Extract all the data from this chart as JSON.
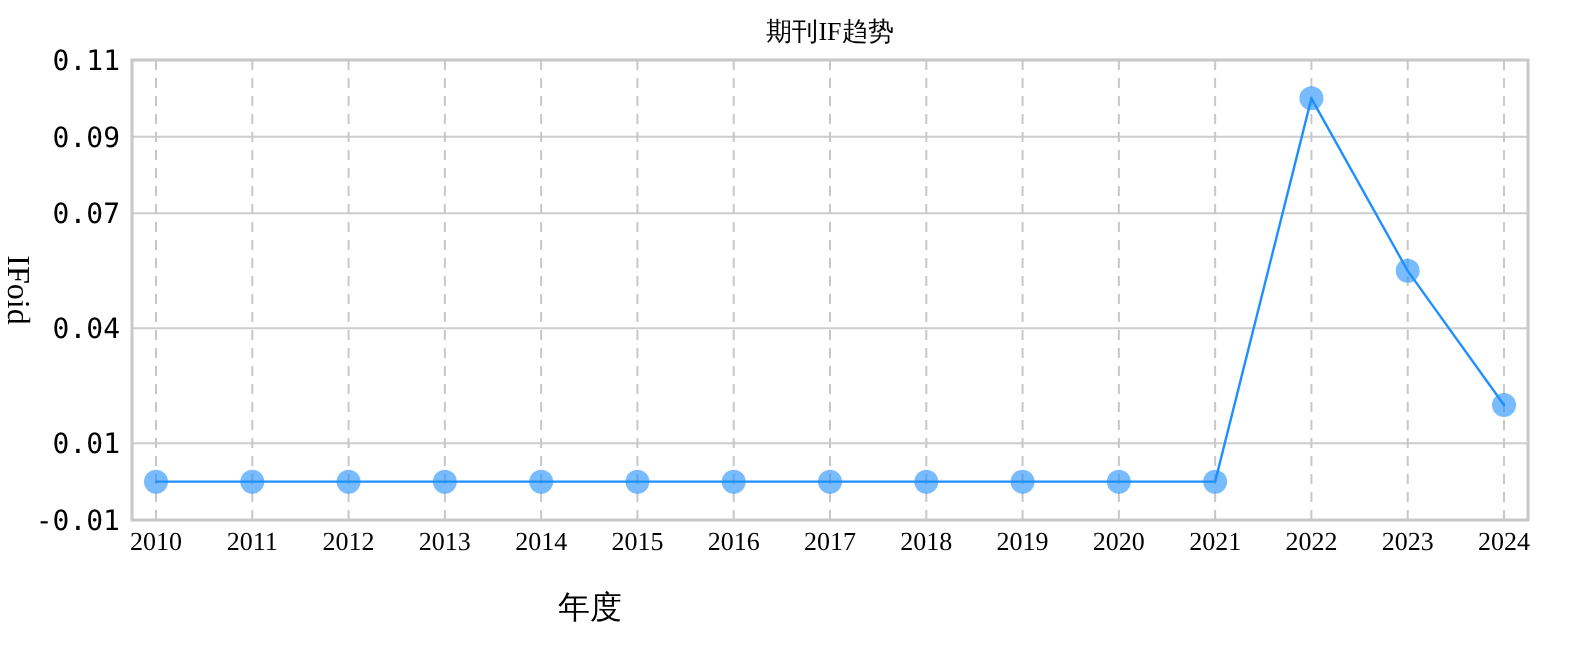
{
  "chart_data": {
    "type": "line",
    "title": "期刊IF趋势",
    "xlabel": "年度",
    "ylabel": "IFoid",
    "categories": [
      "2010",
      "2011",
      "2012",
      "2013",
      "2014",
      "2015",
      "2016",
      "2017",
      "2018",
      "2019",
      "2020",
      "2021",
      "2022",
      "2023",
      "2024"
    ],
    "series": [
      {
        "color": "#1e90ff",
        "values": [
          0,
          0,
          0,
          0,
          0,
          0,
          0,
          0,
          0,
          0,
          0,
          0,
          0.1,
          0.055,
          0.02
        ]
      }
    ],
    "ylim": [
      -0.01,
      0.11
    ],
    "yticks": [
      -0.01,
      0.01,
      0.04,
      0.07,
      0.09,
      0.11
    ],
    "grid": true,
    "marker": "circle",
    "line_style": "solid"
  }
}
